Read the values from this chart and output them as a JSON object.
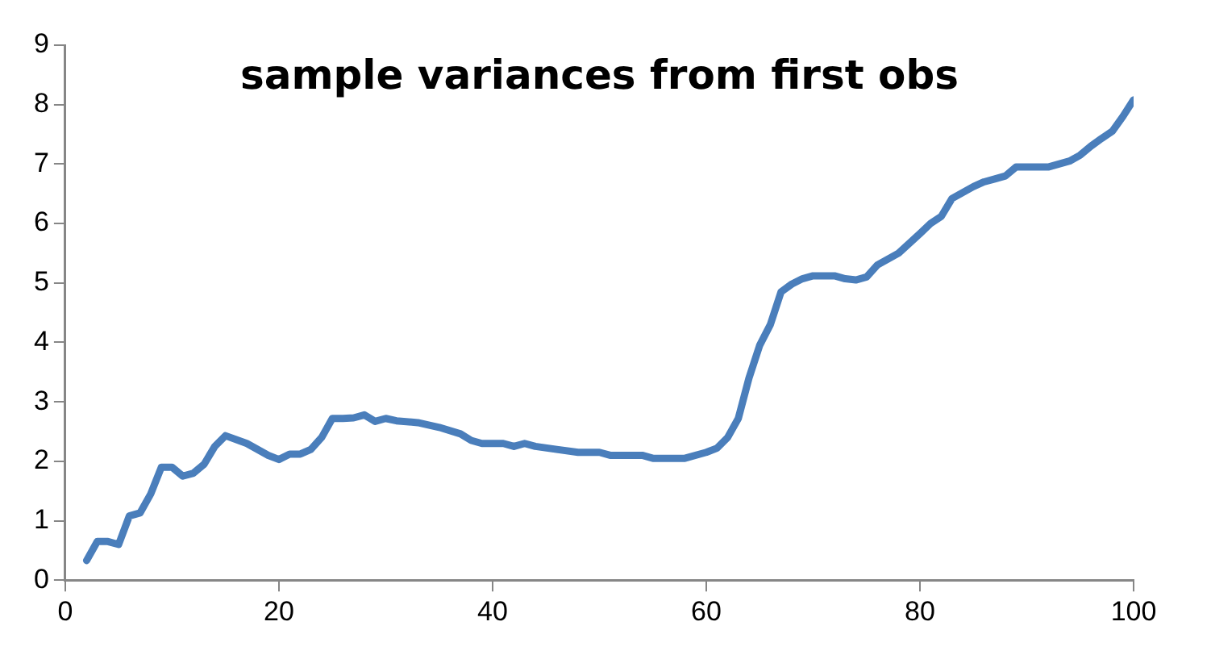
{
  "chart_data": {
    "type": "line",
    "title": "sample variances from first obs",
    "color": "#4a7ebb",
    "grid": false,
    "legend": false,
    "marker": "none",
    "line_style": "solid",
    "x": [
      2,
      3,
      4,
      5,
      6,
      7,
      8,
      9,
      10,
      11,
      12,
      13,
      14,
      15,
      17,
      19,
      20,
      21,
      22,
      23,
      24,
      25,
      26,
      27,
      28,
      29,
      30,
      31,
      33,
      35,
      37,
      38,
      39,
      41,
      42,
      43,
      44,
      46,
      48,
      50,
      51,
      54,
      55,
      58,
      60,
      61,
      62,
      63,
      64,
      65,
      66,
      67,
      68,
      69,
      70,
      72,
      73,
      74,
      75,
      76,
      78,
      80,
      81,
      82,
      83,
      85,
      86,
      87,
      88,
      89,
      92,
      94,
      95,
      96,
      97,
      98,
      99,
      100
    ],
    "values": [
      0.33,
      0.65,
      0.65,
      0.6,
      1.08,
      1.13,
      1.45,
      1.9,
      1.9,
      1.75,
      1.8,
      1.95,
      2.25,
      2.43,
      2.3,
      2.1,
      2.03,
      2.12,
      2.12,
      2.2,
      2.4,
      2.72,
      2.72,
      2.73,
      2.78,
      2.67,
      2.72,
      2.68,
      2.65,
      2.57,
      2.46,
      2.35,
      2.3,
      2.3,
      2.25,
      2.3,
      2.25,
      2.2,
      2.15,
      2.15,
      2.1,
      2.1,
      2.05,
      2.05,
      2.15,
      2.22,
      2.4,
      2.72,
      3.4,
      3.95,
      4.3,
      4.85,
      4.98,
      5.07,
      5.12,
      5.12,
      5.07,
      5.05,
      5.1,
      5.3,
      5.5,
      5.83,
      6.0,
      6.12,
      6.42,
      6.62,
      6.7,
      6.75,
      6.8,
      6.95,
      6.95,
      7.05,
      7.15,
      7.3,
      7.43,
      7.55,
      7.8,
      8.08
    ],
    "xlim": [
      0,
      100
    ],
    "xticks": [
      0,
      20,
      40,
      60,
      80,
      100
    ],
    "ylim": [
      0,
      9
    ],
    "yticks": [
      0,
      1,
      2,
      3,
      4,
      5,
      6,
      7,
      8,
      9
    ]
  }
}
